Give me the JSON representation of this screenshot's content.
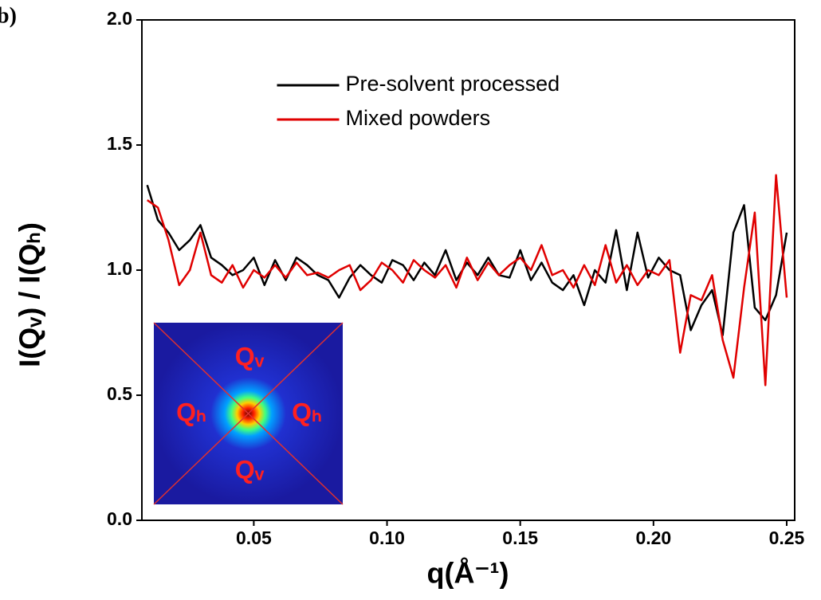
{
  "chart_data": {
    "type": "line",
    "panel_label": "b)",
    "x_label": "q(Å⁻¹)",
    "y_label": "I(Qᵥ) / I(Qₕ)",
    "inset_labels": [
      "Qᵥ",
      "Qₕ",
      "Qₕ",
      "Qᵥ"
    ],
    "legend": "upper center",
    "xlim": [
      0.008,
      0.253
    ],
    "ylim": [
      0,
      2
    ],
    "xticks": [
      0.05,
      {
        "value": 0.1,
        "label": "0.10"
      },
      0.15,
      {
        "value": 0.2,
        "label": "0.20"
      },
      0.25
    ],
    "yticks": [
      {
        "value": 0,
        "label": "0.0"
      },
      0.5,
      {
        "value": 1,
        "label": "1.0"
      },
      1.5,
      {
        "value": 2,
        "label": "2.0"
      }
    ],
    "x": [
      0.01,
      0.014,
      0.018,
      0.022,
      0.026,
      0.03,
      0.034,
      0.038,
      0.042,
      0.046,
      0.05,
      0.054,
      0.058,
      0.062,
      0.066,
      0.07,
      0.074,
      0.078,
      0.082,
      0.086,
      0.09,
      0.094,
      0.098,
      0.102,
      0.106,
      0.11,
      0.114,
      0.118,
      0.122,
      0.126,
      0.13,
      0.134,
      0.138,
      0.142,
      0.146,
      0.15,
      0.154,
      0.158,
      0.162,
      0.166,
      0.17,
      0.174,
      0.178,
      0.182,
      0.186,
      0.19,
      0.194,
      0.198,
      0.202,
      0.206,
      0.21,
      0.214,
      0.218,
      0.222,
      0.226,
      0.23,
      0.234,
      0.238,
      0.242,
      0.246,
      0.25
    ],
    "series": [
      {
        "name": "Pre-solvent processed",
        "color": "#000000",
        "values": [
          1.34,
          1.2,
          1.15,
          1.08,
          1.12,
          1.18,
          1.05,
          1.02,
          0.98,
          1.0,
          1.05,
          0.94,
          1.04,
          0.96,
          1.05,
          1.02,
          0.98,
          0.96,
          0.89,
          0.97,
          1.02,
          0.98,
          0.95,
          1.04,
          1.02,
          0.96,
          1.03,
          0.98,
          1.08,
          0.96,
          1.03,
          0.98,
          1.05,
          0.98,
          0.97,
          1.08,
          0.96,
          1.03,
          0.95,
          0.92,
          0.98,
          0.86,
          1.0,
          0.95,
          1.16,
          0.92,
          1.15,
          0.97,
          1.05,
          1.0,
          0.98,
          0.76,
          0.86,
          0.92,
          0.74,
          1.15,
          1.26,
          0.85,
          0.8,
          0.9,
          1.15
        ]
      },
      {
        "name": "Mixed powders",
        "color": "#e00000",
        "values": [
          1.28,
          1.25,
          1.12,
          0.94,
          1.0,
          1.15,
          0.98,
          0.95,
          1.02,
          0.93,
          1.0,
          0.97,
          1.02,
          0.97,
          1.03,
          0.98,
          0.99,
          0.97,
          1.0,
          1.02,
          0.92,
          0.96,
          1.03,
          1.0,
          0.95,
          1.04,
          1.0,
          0.97,
          1.02,
          0.93,
          1.05,
          0.96,
          1.03,
          0.98,
          1.02,
          1.05,
          1.0,
          1.1,
          0.98,
          1.0,
          0.93,
          1.02,
          0.94,
          1.1,
          0.95,
          1.02,
          0.94,
          1.0,
          0.98,
          1.04,
          0.67,
          0.9,
          0.88,
          0.98,
          0.72,
          0.57,
          0.93,
          1.23,
          0.54,
          1.38,
          0.89
        ]
      }
    ]
  }
}
